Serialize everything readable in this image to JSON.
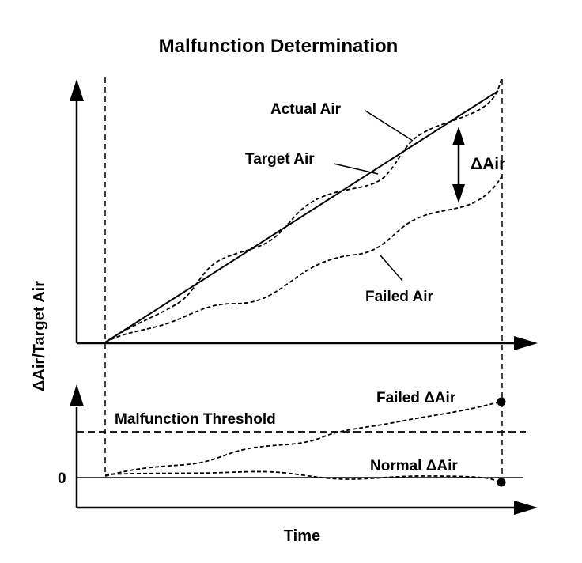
{
  "title": "Malfunction Determination",
  "y_axis_label": "ΔAir/Target Air",
  "x_axis_label": "Time",
  "upper_plot": {
    "labels": {
      "actual_air": "Actual Air",
      "target_air": "Target Air",
      "failed_air": "Failed Air",
      "delta_air": "ΔAir"
    }
  },
  "lower_plot": {
    "labels": {
      "malfunction_threshold": "Malfunction Threshold",
      "failed_delta_air": "Failed ΔAir",
      "normal_delta_air": "Normal ΔAir",
      "zero": "0"
    }
  }
}
